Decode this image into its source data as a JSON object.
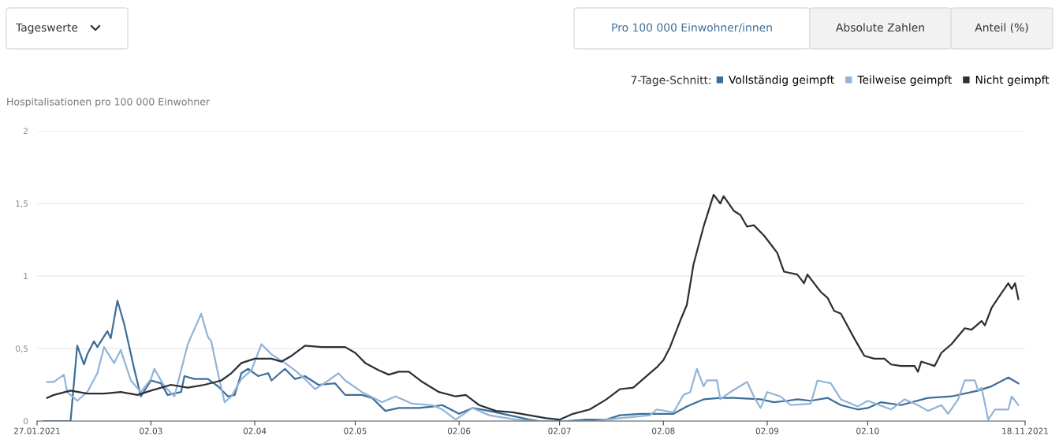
{
  "chart_data": {
    "type": "line",
    "ylabel": "Hospitalisationen pro 100 000 Einwohner",
    "legend_title": "7-Tage-Schnitt:",
    "annotations": [
      "Tageswerte",
      "Pro 100 000 Einwohner/innen",
      "Absolute Zahlen",
      "Anteil (%)"
    ],
    "xlim": [
      "2021-01-27",
      "2021-11-18"
    ],
    "xticks": [
      {
        "value": "2021-01-27",
        "label": "27.01.2021"
      },
      {
        "value": "2021-03-02",
        "label": "02.03"
      },
      {
        "value": "2021-04-02",
        "label": "02.04"
      },
      {
        "value": "2021-05-02",
        "label": "02.05"
      },
      {
        "value": "2021-06-02",
        "label": "02.06"
      },
      {
        "value": "2021-07-02",
        "label": "02.07"
      },
      {
        "value": "2021-08-02",
        "label": "02.08"
      },
      {
        "value": "2021-09-02",
        "label": "02.09"
      },
      {
        "value": "2021-10-02",
        "label": "02.10"
      },
      {
        "value": "2021-11-18",
        "label": "18.11.2021"
      }
    ],
    "ylim": [
      0,
      2
    ],
    "yticks": [
      0,
      {
        "value": 0.5,
        "label": "0,5"
      },
      1,
      {
        "value": 1.5,
        "label": "1,5"
      },
      2
    ],
    "grid": "y",
    "legend": "top right",
    "marker": "none",
    "line_style": "solid",
    "series": [
      {
        "name": "Vollständig geimpft",
        "color": "#3d6d99",
        "x": [
          "2021-01-29",
          "2021-02-06",
          "2021-02-08",
          "2021-02-10",
          "2021-02-11",
          "2021-02-13",
          "2021-02-14",
          "2021-02-17",
          "2021-02-18",
          "2021-02-20",
          "2021-02-22",
          "2021-02-25",
          "2021-02-27",
          "2021-03-02",
          "2021-03-05",
          "2021-03-07",
          "2021-03-11",
          "2021-03-12",
          "2021-03-15",
          "2021-03-19",
          "2021-03-22",
          "2021-03-25",
          "2021-03-27",
          "2021-03-29",
          "2021-03-31",
          "2021-04-03",
          "2021-04-06",
          "2021-04-07",
          "2021-04-11",
          "2021-04-14",
          "2021-04-17",
          "2021-04-21",
          "2021-04-26",
          "2021-04-29",
          "2021-05-04",
          "2021-05-07",
          "2021-05-11",
          "2021-05-15",
          "2021-05-21",
          "2021-05-25",
          "2021-05-28",
          "2021-06-02",
          "2021-06-06",
          "2021-06-11",
          "2021-06-17",
          "2021-06-23",
          "2021-06-26",
          "2021-07-04",
          "2021-07-10",
          "2021-07-16",
          "2021-07-20",
          "2021-07-26",
          "2021-07-31",
          "2021-08-05",
          "2021-08-09",
          "2021-08-14",
          "2021-08-19",
          "2021-08-23",
          "2021-08-31",
          "2021-09-04",
          "2021-09-08",
          "2021-09-11",
          "2021-09-15",
          "2021-09-20",
          "2021-09-24",
          "2021-09-29",
          "2021-10-02",
          "2021-10-06",
          "2021-10-12",
          "2021-10-20",
          "2021-10-27",
          "2021-11-04",
          "2021-11-08",
          "2021-11-13",
          "2021-11-16"
        ],
        "values": [
          0,
          0,
          0.52,
          0.39,
          0.46,
          0.55,
          0.51,
          0.62,
          0.57,
          0.83,
          0.67,
          0.36,
          0.17,
          0.28,
          0.26,
          0.18,
          0.2,
          0.31,
          0.29,
          0.29,
          0.24,
          0.17,
          0.18,
          0.33,
          0.36,
          0.31,
          0.33,
          0.28,
          0.36,
          0.29,
          0.31,
          0.25,
          0.26,
          0.18,
          0.18,
          0.16,
          0.07,
          0.09,
          0.09,
          0.1,
          0.11,
          0.05,
          0.09,
          0.07,
          0.04,
          0.01,
          0,
          0,
          0.01,
          0.01,
          0.04,
          0.05,
          0.05,
          0.05,
          0.1,
          0.15,
          0.16,
          0.16,
          0.15,
          0.13,
          0.14,
          0.15,
          0.14,
          0.16,
          0.11,
          0.08,
          0.09,
          0.13,
          0.11,
          0.16,
          0.17,
          0.21,
          0.24,
          0.3,
          0.26
        ]
      },
      {
        "name": "Teilweise geimpft",
        "color": "#92b4d8",
        "x": [
          "2021-01-30",
          "2021-02-01",
          "2021-02-04",
          "2021-02-05",
          "2021-02-08",
          "2021-02-11",
          "2021-02-14",
          "2021-02-16",
          "2021-02-19",
          "2021-02-21",
          "2021-02-24",
          "2021-02-27",
          "2021-03-02",
          "2021-03-03",
          "2021-03-06",
          "2021-03-09",
          "2021-03-11",
          "2021-03-13",
          "2021-03-17",
          "2021-03-19",
          "2021-03-20",
          "2021-03-22",
          "2021-03-24",
          "2021-03-26",
          "2021-03-29",
          "2021-04-01",
          "2021-04-04",
          "2021-04-07",
          "2021-04-11",
          "2021-04-14",
          "2021-04-17",
          "2021-04-20",
          "2021-04-24",
          "2021-04-27",
          "2021-04-29",
          "2021-05-04",
          "2021-05-10",
          "2021-05-14",
          "2021-05-19",
          "2021-05-25",
          "2021-05-28",
          "2021-06-01",
          "2021-06-06",
          "2021-06-11",
          "2021-06-19",
          "2021-06-25",
          "2021-07-04",
          "2021-07-12",
          "2021-07-20",
          "2021-07-29",
          "2021-07-31",
          "2021-08-05",
          "2021-08-08",
          "2021-08-10",
          "2021-08-12",
          "2021-08-14",
          "2021-08-15",
          "2021-08-18",
          "2021-08-19",
          "2021-08-22",
          "2021-08-27",
          "2021-08-29",
          "2021-08-31",
          "2021-09-02",
          "2021-09-06",
          "2021-09-09",
          "2021-09-15",
          "2021-09-17",
          "2021-09-21",
          "2021-09-24",
          "2021-09-29",
          "2021-10-02",
          "2021-10-09",
          "2021-10-13",
          "2021-10-17",
          "2021-10-20",
          "2021-10-24",
          "2021-10-26",
          "2021-10-29",
          "2021-10-31",
          "2021-11-03",
          "2021-11-04",
          "2021-11-05",
          "2021-11-07",
          "2021-11-09",
          "2021-11-13",
          "2021-11-14",
          "2021-11-16"
        ],
        "values": [
          0.27,
          0.27,
          0.32,
          0.2,
          0.14,
          0.2,
          0.33,
          0.51,
          0.4,
          0.49,
          0.28,
          0.2,
          0.29,
          0.36,
          0.24,
          0.17,
          0.35,
          0.53,
          0.74,
          0.58,
          0.55,
          0.33,
          0.13,
          0.17,
          0.29,
          0.35,
          0.53,
          0.46,
          0.4,
          0.35,
          0.29,
          0.22,
          0.28,
          0.33,
          0.28,
          0.2,
          0.13,
          0.17,
          0.12,
          0.11,
          0.08,
          0.01,
          0.09,
          0.04,
          0.01,
          0,
          0,
          0,
          0.02,
          0.04,
          0.08,
          0.06,
          0.18,
          0.2,
          0.36,
          0.24,
          0.28,
          0.28,
          0.15,
          0.2,
          0.27,
          0.17,
          0.09,
          0.2,
          0.17,
          0.11,
          0.12,
          0.28,
          0.26,
          0.15,
          0.1,
          0.14,
          0.08,
          0.15,
          0.11,
          0.07,
          0.11,
          0.05,
          0.15,
          0.28,
          0.28,
          0.21,
          0.23,
          0.01,
          0.08,
          0.08,
          0.17,
          0.11
        ]
      },
      {
        "name": "Nicht geimpft",
        "color": "#2b2f36",
        "x": [
          "2021-01-30",
          "2021-02-01",
          "2021-02-06",
          "2021-02-11",
          "2021-02-16",
          "2021-02-21",
          "2021-02-26",
          "2021-03-02",
          "2021-03-08",
          "2021-03-13",
          "2021-03-18",
          "2021-03-23",
          "2021-03-26",
          "2021-03-29",
          "2021-04-02",
          "2021-04-07",
          "2021-04-10",
          "2021-04-13",
          "2021-04-17",
          "2021-04-22",
          "2021-04-29",
          "2021-05-02",
          "2021-05-05",
          "2021-05-09",
          "2021-05-12",
          "2021-05-15",
          "2021-05-18",
          "2021-05-22",
          "2021-05-27",
          "2021-06-01",
          "2021-06-04",
          "2021-06-08",
          "2021-06-13",
          "2021-06-18",
          "2021-06-23",
          "2021-06-28",
          "2021-07-02",
          "2021-07-06",
          "2021-07-11",
          "2021-07-16",
          "2021-07-20",
          "2021-07-24",
          "2021-07-28",
          "2021-07-31",
          "2021-08-02",
          "2021-08-04",
          "2021-08-07",
          "2021-08-09",
          "2021-08-11",
          "2021-08-14",
          "2021-08-17",
          "2021-08-19",
          "2021-08-20",
          "2021-08-23",
          "2021-08-25",
          "2021-08-27",
          "2021-08-29",
          "2021-09-01",
          "2021-09-03",
          "2021-09-05",
          "2021-09-07",
          "2021-09-11",
          "2021-09-13",
          "2021-09-14",
          "2021-09-18",
          "2021-09-20",
          "2021-09-22",
          "2021-09-24",
          "2021-09-28",
          "2021-09-30",
          "2021-10-01",
          "2021-10-04",
          "2021-10-07",
          "2021-10-09",
          "2021-10-12",
          "2021-10-16",
          "2021-10-17",
          "2021-10-18",
          "2021-10-22",
          "2021-10-24",
          "2021-10-27",
          "2021-10-31",
          "2021-11-02",
          "2021-11-05",
          "2021-11-06",
          "2021-11-08",
          "2021-11-10",
          "2021-11-13",
          "2021-11-14",
          "2021-11-15",
          "2021-11-16"
        ],
        "values": [
          0.16,
          0.18,
          0.21,
          0.19,
          0.19,
          0.2,
          0.18,
          0.21,
          0.25,
          0.23,
          0.25,
          0.28,
          0.33,
          0.4,
          0.43,
          0.43,
          0.41,
          0.45,
          0.52,
          0.51,
          0.51,
          0.47,
          0.4,
          0.35,
          0.32,
          0.34,
          0.34,
          0.27,
          0.2,
          0.17,
          0.18,
          0.11,
          0.07,
          0.06,
          0.04,
          0.02,
          0.01,
          0.05,
          0.08,
          0.15,
          0.22,
          0.23,
          0.31,
          0.37,
          0.42,
          0.51,
          0.69,
          0.8,
          1.08,
          1.34,
          1.56,
          1.5,
          1.55,
          1.45,
          1.42,
          1.34,
          1.35,
          1.28,
          1.22,
          1.16,
          1.03,
          1.01,
          0.95,
          1.01,
          0.89,
          0.85,
          0.76,
          0.74,
          0.57,
          0.49,
          0.45,
          0.43,
          0.43,
          0.39,
          0.38,
          0.38,
          0.34,
          0.41,
          0.38,
          0.47,
          0.53,
          0.64,
          0.63,
          0.69,
          0.66,
          0.78,
          0.85,
          0.95,
          0.91,
          0.95,
          0.84
        ]
      }
    ]
  }
}
